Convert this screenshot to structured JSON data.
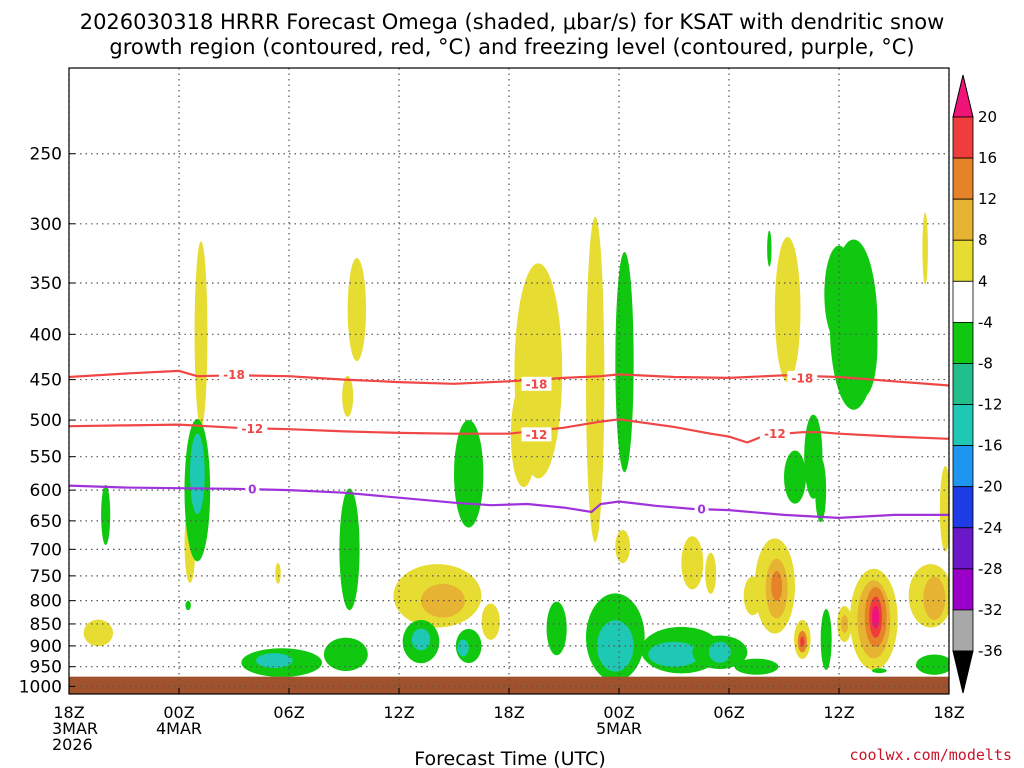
{
  "chart_data": {
    "type": "heatmap",
    "title_line1": "2026030318 HRRR Forecast Omega (shaded, μbar/s) for KSAT with dendritic snow",
    "title_line2": "growth region (contoured, red, °C) and freezing level (contoured, purple, °C)",
    "xlabel": "Forecast Time (UTC)",
    "credit": "coolwx.com/modelts",
    "xlim": [
      0,
      48
    ],
    "plim": [
      1020,
      200
    ],
    "y_ticks": [
      250,
      300,
      350,
      400,
      450,
      500,
      550,
      600,
      650,
      700,
      750,
      800,
      850,
      900,
      950,
      1000
    ],
    "x_ticks": [
      {
        "hour": 0,
        "lines": [
          "18Z",
          "3MAR",
          "2026"
        ]
      },
      {
        "hour": 6,
        "lines": [
          "00Z",
          "4MAR"
        ]
      },
      {
        "hour": 12,
        "lines": [
          "06Z"
        ]
      },
      {
        "hour": 18,
        "lines": [
          "12Z"
        ]
      },
      {
        "hour": 24,
        "lines": [
          "18Z"
        ]
      },
      {
        "hour": 30,
        "lines": [
          "00Z",
          "5MAR"
        ]
      },
      {
        "hour": 36,
        "lines": [
          "06Z"
        ]
      },
      {
        "hour": 42,
        "lines": [
          "12Z"
        ]
      },
      {
        "hour": 48,
        "lines": [
          "18Z"
        ]
      }
    ],
    "colorbar": {
      "levels": [
        -36,
        -32,
        -28,
        -24,
        -20,
        -16,
        -12,
        -8,
        -4,
        4,
        8,
        12,
        16,
        20
      ],
      "colors": [
        "#000000",
        "#a8a8a8",
        "#9a00c8",
        "#6a18c8",
        "#1e3ce6",
        "#1e96f0",
        "#1ec8b4",
        "#22be8c",
        "#10c810",
        "#ffffff",
        "#e6dc32",
        "#e6b432",
        "#e68228",
        "#f03c3c",
        "#f01478"
      ]
    },
    "surface_pressure": 975,
    "contours": [
      {
        "name": "-18",
        "color": "#f04646",
        "points": [
          [
            0,
            447
          ],
          [
            3,
            443
          ],
          [
            6,
            440
          ],
          [
            7,
            446
          ],
          [
            9,
            445
          ],
          [
            12,
            446
          ],
          [
            15,
            450
          ],
          [
            18,
            453
          ],
          [
            21,
            455
          ],
          [
            24,
            452
          ],
          [
            27,
            448
          ],
          [
            29,
            446
          ],
          [
            30,
            444
          ],
          [
            33,
            447
          ],
          [
            36,
            448
          ],
          [
            39,
            445
          ],
          [
            42,
            447
          ],
          [
            45,
            452
          ],
          [
            48,
            457
          ]
        ],
        "labels": [
          [
            9,
            444
          ],
          [
            25.5,
            455
          ],
          [
            40,
            448
          ]
        ]
      },
      {
        "name": "-12",
        "color": "#f04646",
        "points": [
          [
            0,
            508
          ],
          [
            3,
            507
          ],
          [
            6,
            506
          ],
          [
            9,
            510
          ],
          [
            12,
            512
          ],
          [
            15,
            515
          ],
          [
            18,
            517
          ],
          [
            21,
            518
          ],
          [
            24,
            518
          ],
          [
            27,
            510
          ],
          [
            29,
            502
          ],
          [
            30,
            499
          ],
          [
            33,
            509
          ],
          [
            35,
            518
          ],
          [
            36,
            522
          ],
          [
            37,
            530
          ],
          [
            38,
            520
          ],
          [
            40,
            516
          ],
          [
            41,
            516
          ],
          [
            42,
            518
          ],
          [
            45,
            522
          ],
          [
            48,
            525
          ]
        ],
        "labels": [
          [
            10,
            511
          ],
          [
            25.5,
            519
          ],
          [
            38.5,
            518
          ]
        ]
      },
      {
        "name": "0",
        "color": "#a032dc",
        "points": [
          [
            0,
            593
          ],
          [
            3,
            596
          ],
          [
            6,
            597
          ],
          [
            9,
            598
          ],
          [
            12,
            600
          ],
          [
            15,
            604
          ],
          [
            18,
            612
          ],
          [
            21,
            620
          ],
          [
            23,
            624
          ],
          [
            25,
            622
          ],
          [
            27,
            628
          ],
          [
            28.5,
            635
          ],
          [
            29,
            622
          ],
          [
            30,
            618
          ],
          [
            32,
            625
          ],
          [
            34,
            630
          ],
          [
            36,
            632
          ],
          [
            39,
            640
          ],
          [
            42,
            645
          ],
          [
            45,
            640
          ],
          [
            48,
            640
          ]
        ],
        "labels": [
          [
            10,
            598
          ],
          [
            34.5,
            630
          ]
        ]
      }
    ],
    "omega_cells": [
      {
        "t": 7.2,
        "p": 400,
        "rx": 0.35,
        "ry": 95,
        "v": 4
      },
      {
        "t": 1.6,
        "p": 870,
        "rx": 0.8,
        "ry": 30,
        "v": 4
      },
      {
        "t": 2.0,
        "p": 640,
        "rx": 0.25,
        "ry": 50,
        "v": -6
      },
      {
        "t": 6.6,
        "p": 690,
        "rx": 0.3,
        "ry": 70,
        "v": 4
      },
      {
        "t": 7.0,
        "p": 600,
        "rx": 0.7,
        "ry": 110,
        "v": -6
      },
      {
        "t": 7.0,
        "p": 575,
        "rx": 0.4,
        "ry": 60,
        "v": -12
      },
      {
        "t": 11.6,
        "p": 940,
        "rx": 2.2,
        "ry": 35,
        "v": -6
      },
      {
        "t": 11.2,
        "p": 935,
        "rx": 1.0,
        "ry": 18,
        "v": -12
      },
      {
        "t": 6.5,
        "p": 810,
        "rx": 0.15,
        "ry": 10,
        "v": -6
      },
      {
        "t": 11.4,
        "p": 745,
        "rx": 0.15,
        "ry": 20,
        "v": 4
      },
      {
        "t": 15.7,
        "p": 375,
        "rx": 0.5,
        "ry": 50,
        "v": 4
      },
      {
        "t": 15.2,
        "p": 470,
        "rx": 0.3,
        "ry": 25,
        "v": 4
      },
      {
        "t": 15.3,
        "p": 700,
        "rx": 0.55,
        "ry": 110,
        "v": -6
      },
      {
        "t": 15.1,
        "p": 920,
        "rx": 1.2,
        "ry": 40,
        "v": -6
      },
      {
        "t": 20.1,
        "p": 790,
        "rx": 2.4,
        "ry": 65,
        "v": 4
      },
      {
        "t": 20.4,
        "p": 800,
        "rx": 1.2,
        "ry": 35,
        "v": 8
      },
      {
        "t": 19.2,
        "p": 890,
        "rx": 1.0,
        "ry": 50,
        "v": -6
      },
      {
        "t": 19.2,
        "p": 885,
        "rx": 0.5,
        "ry": 25,
        "v": -12
      },
      {
        "t": 21.8,
        "p": 900,
        "rx": 0.7,
        "ry": 40,
        "v": -6
      },
      {
        "t": 21.5,
        "p": 905,
        "rx": 0.3,
        "ry": 20,
        "v": -12
      },
      {
        "t": 23.0,
        "p": 845,
        "rx": 0.5,
        "ry": 40,
        "v": 4
      },
      {
        "t": 21.8,
        "p": 575,
        "rx": 0.8,
        "ry": 80,
        "v": -6
      },
      {
        "t": 25.6,
        "p": 440,
        "rx": 1.3,
        "ry": 120,
        "v": 4
      },
      {
        "t": 24.8,
        "p": 520,
        "rx": 0.7,
        "ry": 70,
        "v": 4
      },
      {
        "t": 28.7,
        "p": 450,
        "rx": 0.5,
        "ry": 180,
        "v": 4
      },
      {
        "t": 30.3,
        "p": 430,
        "rx": 0.5,
        "ry": 120,
        "v": -6
      },
      {
        "t": 30.2,
        "p": 695,
        "rx": 0.4,
        "ry": 30,
        "v": 4
      },
      {
        "t": 26.6,
        "p": 860,
        "rx": 0.55,
        "ry": 60,
        "v": -6
      },
      {
        "t": 29.8,
        "p": 880,
        "rx": 1.6,
        "ry": 100,
        "v": -6
      },
      {
        "t": 29.8,
        "p": 900,
        "rx": 1.0,
        "ry": 60,
        "v": -12
      },
      {
        "t": 33.4,
        "p": 910,
        "rx": 2.2,
        "ry": 55,
        "v": -6
      },
      {
        "t": 33.0,
        "p": 920,
        "rx": 1.4,
        "ry": 30,
        "v": -12
      },
      {
        "t": 35.5,
        "p": 915,
        "rx": 1.5,
        "ry": 40,
        "v": -6
      },
      {
        "t": 35.5,
        "p": 915,
        "rx": 0.6,
        "ry": 25,
        "v": -12
      },
      {
        "t": 37.5,
        "p": 950,
        "rx": 1.2,
        "ry": 20,
        "v": -6
      },
      {
        "t": 34.0,
        "p": 725,
        "rx": 0.6,
        "ry": 50,
        "v": 4
      },
      {
        "t": 35.0,
        "p": 745,
        "rx": 0.3,
        "ry": 40,
        "v": 4
      },
      {
        "t": 37.3,
        "p": 790,
        "rx": 0.5,
        "ry": 40,
        "v": 4
      },
      {
        "t": 38.5,
        "p": 770,
        "rx": 1.1,
        "ry": 95,
        "v": 4
      },
      {
        "t": 38.6,
        "p": 775,
        "rx": 0.6,
        "ry": 60,
        "v": 8
      },
      {
        "t": 38.6,
        "p": 770,
        "rx": 0.3,
        "ry": 30,
        "v": 12
      },
      {
        "t": 39.2,
        "p": 375,
        "rx": 0.7,
        "ry": 70,
        "v": 4
      },
      {
        "t": 38.2,
        "p": 320,
        "rx": 0.12,
        "ry": 15,
        "v": -6
      },
      {
        "t": 42.8,
        "p": 390,
        "rx": 1.3,
        "ry": 85,
        "v": -6
      },
      {
        "t": 42.0,
        "p": 360,
        "rx": 0.8,
        "ry": 45,
        "v": -6
      },
      {
        "t": 43.4,
        "p": 410,
        "rx": 0.7,
        "ry": 55,
        "v": -6
      },
      {
        "t": 39.6,
        "p": 580,
        "rx": 0.6,
        "ry": 40,
        "v": -6
      },
      {
        "t": 40.6,
        "p": 550,
        "rx": 0.5,
        "ry": 60,
        "v": -6
      },
      {
        "t": 41.0,
        "p": 600,
        "rx": 0.3,
        "ry": 50,
        "v": -6
      },
      {
        "t": 40.0,
        "p": 885,
        "rx": 0.45,
        "ry": 45,
        "v": 4
      },
      {
        "t": 40.0,
        "p": 890,
        "rx": 0.25,
        "ry": 25,
        "v": 12
      },
      {
        "t": 40.0,
        "p": 890,
        "rx": 0.12,
        "ry": 12,
        "v": 16
      },
      {
        "t": 41.3,
        "p": 885,
        "rx": 0.3,
        "ry": 70,
        "v": -6
      },
      {
        "t": 42.3,
        "p": 850,
        "rx": 0.4,
        "ry": 40,
        "v": 4
      },
      {
        "t": 42.3,
        "p": 850,
        "rx": 0.2,
        "ry": 20,
        "v": 8
      },
      {
        "t": 43.9,
        "p": 840,
        "rx": 1.3,
        "ry": 110,
        "v": 4
      },
      {
        "t": 43.9,
        "p": 840,
        "rx": 0.9,
        "ry": 85,
        "v": 8
      },
      {
        "t": 44.0,
        "p": 835,
        "rx": 0.6,
        "ry": 65,
        "v": 12
      },
      {
        "t": 44.0,
        "p": 835,
        "rx": 0.35,
        "ry": 45,
        "v": 16
      },
      {
        "t": 44.0,
        "p": 835,
        "rx": 0.2,
        "ry": 25,
        "v": 20
      },
      {
        "t": 44.2,
        "p": 960,
        "rx": 0.4,
        "ry": 6,
        "v": -6
      },
      {
        "t": 46.7,
        "p": 320,
        "rx": 0.15,
        "ry": 30,
        "v": 4
      },
      {
        "t": 47.0,
        "p": 790,
        "rx": 1.2,
        "ry": 65,
        "v": 4
      },
      {
        "t": 47.2,
        "p": 795,
        "rx": 0.6,
        "ry": 45,
        "v": 8
      },
      {
        "t": 47.8,
        "p": 630,
        "rx": 0.3,
        "ry": 70,
        "v": 4
      },
      {
        "t": 47.2,
        "p": 945,
        "rx": 1.0,
        "ry": 25,
        "v": -6
      }
    ]
  }
}
